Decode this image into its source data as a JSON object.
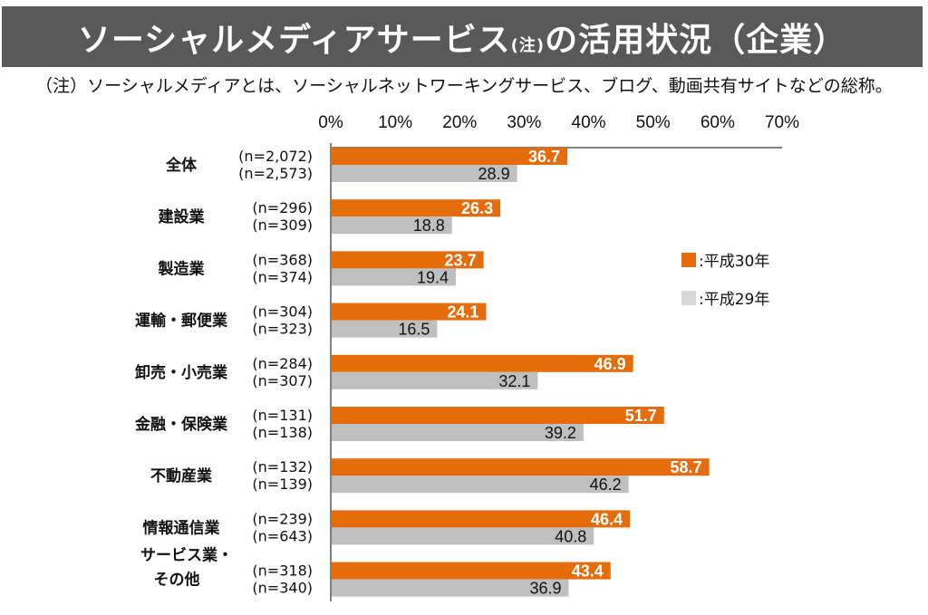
{
  "header": {
    "title_main": "ソーシャルメディアサービス",
    "title_note": "(注)",
    "title_rest": "の活用状況（企業）",
    "subtitle": "（注）ソーシャルメディアとは、ソーシャルネットワーキングサービス、ブログ、動画共有サイトなどの総称。"
  },
  "chart_data": {
    "type": "bar",
    "orientation": "horizontal",
    "title": "ソーシャルメディアサービス(注)の活用状況（企業）",
    "xlim": [
      0,
      70
    ],
    "x_ticks": [
      "0%",
      "10%",
      "20%",
      "30%",
      "40%",
      "50%",
      "60%",
      "70%"
    ],
    "legend_placement": "right",
    "categories": [
      {
        "label": [
          "全体"
        ],
        "n": [
          "(n=2,072)",
          "(n=2,573)"
        ]
      },
      {
        "label": [
          "建設業"
        ],
        "n": [
          "(n=296)",
          "(n=309)"
        ]
      },
      {
        "label": [
          "製造業"
        ],
        "n": [
          "(n=368)",
          "(n=374)"
        ]
      },
      {
        "label": [
          "運輸・郵便業"
        ],
        "n": [
          "(n=304)",
          "(n=323)"
        ]
      },
      {
        "label": [
          "卸売・小売業"
        ],
        "n": [
          "(n=284)",
          "(n=307)"
        ]
      },
      {
        "label": [
          "金融・保険業"
        ],
        "n": [
          "(n=131)",
          "(n=138)"
        ]
      },
      {
        "label": [
          "不動産業"
        ],
        "n": [
          "(n=132)",
          "(n=139)"
        ]
      },
      {
        "label": [
          "情報通信業"
        ],
        "n": [
          "(n=239)",
          "(n=643)"
        ]
      },
      {
        "label": [
          "サービス業・",
          "その他"
        ],
        "n": [
          "(n=318)",
          "(n=340)"
        ]
      }
    ],
    "series": [
      {
        "name": "：平成30年",
        "color": "#E46C0A",
        "values": [
          36.7,
          26.3,
          23.7,
          24.1,
          46.9,
          51.7,
          58.7,
          46.4,
          43.4
        ]
      },
      {
        "name": "：平成29年",
        "color": "#BFBFBF",
        "values": [
          28.9,
          18.8,
          19.4,
          16.5,
          32.1,
          39.2,
          46.2,
          40.8,
          36.9
        ]
      }
    ]
  }
}
